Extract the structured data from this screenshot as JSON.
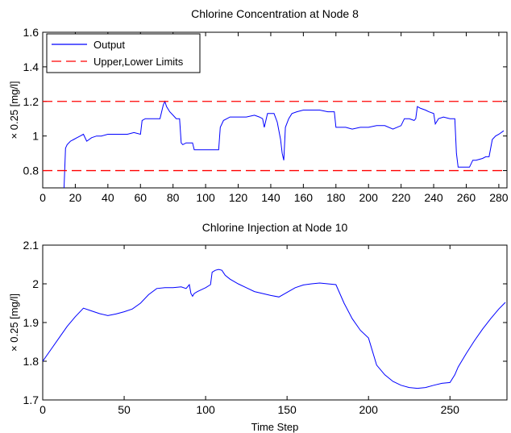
{
  "chart_data": [
    {
      "type": "line",
      "title": "Chlorine Concentration at Node 8",
      "xlabel": "",
      "ylabel": "× 0.25 [mg/l]",
      "xlim": [
        0,
        285
      ],
      "ylim": [
        0.7,
        1.6
      ],
      "xticks": [
        0,
        20,
        40,
        60,
        80,
        100,
        120,
        140,
        160,
        180,
        200,
        220,
        240,
        260,
        280
      ],
      "yticks": [
        0.8,
        1,
        1.2,
        1.4,
        1.6
      ],
      "legend": "top-left",
      "series": [
        {
          "name": "Output",
          "color": "#0000ff",
          "style": "solid",
          "x": [
            13,
            14,
            15,
            17,
            19,
            21,
            23,
            25,
            27,
            30,
            33,
            36,
            40,
            44,
            48,
            52,
            56,
            60,
            61,
            63,
            66,
            70,
            72,
            74,
            75,
            76,
            78,
            80,
            82,
            84,
            85,
            86,
            88,
            90,
            92,
            93,
            95,
            100,
            105,
            108,
            109,
            111,
            115,
            120,
            125,
            130,
            133,
            135,
            136,
            138,
            140,
            142,
            144,
            146,
            147,
            148,
            149,
            151,
            153,
            156,
            160,
            165,
            170,
            175,
            179,
            180,
            183,
            186,
            190,
            195,
            200,
            205,
            210,
            215,
            220,
            222,
            225,
            228,
            229,
            230,
            232,
            235,
            237,
            240,
            241,
            243,
            246,
            250,
            253,
            254,
            255,
            258,
            262,
            264,
            266,
            270,
            272,
            274,
            276,
            278,
            280,
            283
          ],
          "y": [
            0.68,
            0.93,
            0.95,
            0.97,
            0.98,
            0.99,
            1.0,
            1.01,
            0.97,
            0.99,
            1.0,
            1.0,
            1.01,
            1.01,
            1.01,
            1.01,
            1.02,
            1.01,
            1.09,
            1.1,
            1.1,
            1.1,
            1.1,
            1.18,
            1.2,
            1.17,
            1.14,
            1.12,
            1.1,
            1.1,
            0.96,
            0.95,
            0.96,
            0.96,
            0.96,
            0.92,
            0.92,
            0.92,
            0.92,
            0.92,
            1.05,
            1.09,
            1.11,
            1.11,
            1.11,
            1.12,
            1.11,
            1.1,
            1.05,
            1.13,
            1.13,
            1.13,
            1.08,
            0.98,
            0.9,
            0.86,
            1.05,
            1.1,
            1.13,
            1.14,
            1.15,
            1.15,
            1.15,
            1.14,
            1.14,
            1.05,
            1.05,
            1.05,
            1.04,
            1.05,
            1.05,
            1.06,
            1.06,
            1.04,
            1.06,
            1.1,
            1.1,
            1.09,
            1.1,
            1.17,
            1.16,
            1.15,
            1.14,
            1.13,
            1.07,
            1.1,
            1.11,
            1.1,
            1.1,
            0.9,
            0.82,
            0.82,
            0.82,
            0.86,
            0.86,
            0.87,
            0.88,
            0.88,
            0.98,
            1.0,
            1.01,
            1.03
          ]
        },
        {
          "name": "Upper,Lower Limits",
          "color": "#ff0000",
          "style": "dashed",
          "hlines": [
            1.2,
            0.8
          ]
        }
      ]
    },
    {
      "type": "line",
      "title": "Chlorine Injection at Node 10",
      "xlabel": "Time Step",
      "ylabel": "× 0.25 [mg/l]",
      "xlim": [
        0,
        285
      ],
      "ylim": [
        1.7,
        2.1
      ],
      "xticks": [
        0,
        50,
        100,
        150,
        200,
        250
      ],
      "yticks": [
        1.7,
        1.8,
        1.9,
        2,
        2.1
      ],
      "series": [
        {
          "color": "#0000ff",
          "style": "solid",
          "x": [
            0,
            5,
            10,
            15,
            20,
            25,
            30,
            35,
            40,
            45,
            50,
            55,
            60,
            65,
            70,
            75,
            80,
            85,
            88,
            90,
            91,
            92,
            93,
            95,
            100,
            103,
            104,
            106,
            108,
            110,
            112,
            115,
            120,
            125,
            130,
            135,
            140,
            145,
            150,
            155,
            160,
            165,
            170,
            175,
            180,
            185,
            190,
            195,
            200,
            205,
            210,
            215,
            220,
            225,
            230,
            235,
            240,
            245,
            250,
            253,
            255,
            260,
            265,
            270,
            275,
            280,
            284
          ],
          "y": [
            1.8,
            1.83,
            1.86,
            1.89,
            1.915,
            1.937,
            1.93,
            1.923,
            1.918,
            1.922,
            1.928,
            1.935,
            1.95,
            1.972,
            1.988,
            1.99,
            1.99,
            1.992,
            1.988,
            1.998,
            1.975,
            1.968,
            1.975,
            1.98,
            1.99,
            1.998,
            2.03,
            2.035,
            2.037,
            2.035,
            2.022,
            2.012,
            2.0,
            1.99,
            1.98,
            1.975,
            1.97,
            1.966,
            1.978,
            1.99,
            1.997,
            2.0,
            2.002,
            2.0,
            1.998,
            1.95,
            1.91,
            1.88,
            1.86,
            1.79,
            1.765,
            1.748,
            1.738,
            1.732,
            1.73,
            1.732,
            1.738,
            1.743,
            1.745,
            1.765,
            1.785,
            1.82,
            1.853,
            1.883,
            1.91,
            1.935,
            1.952
          ]
        }
      ]
    }
  ]
}
